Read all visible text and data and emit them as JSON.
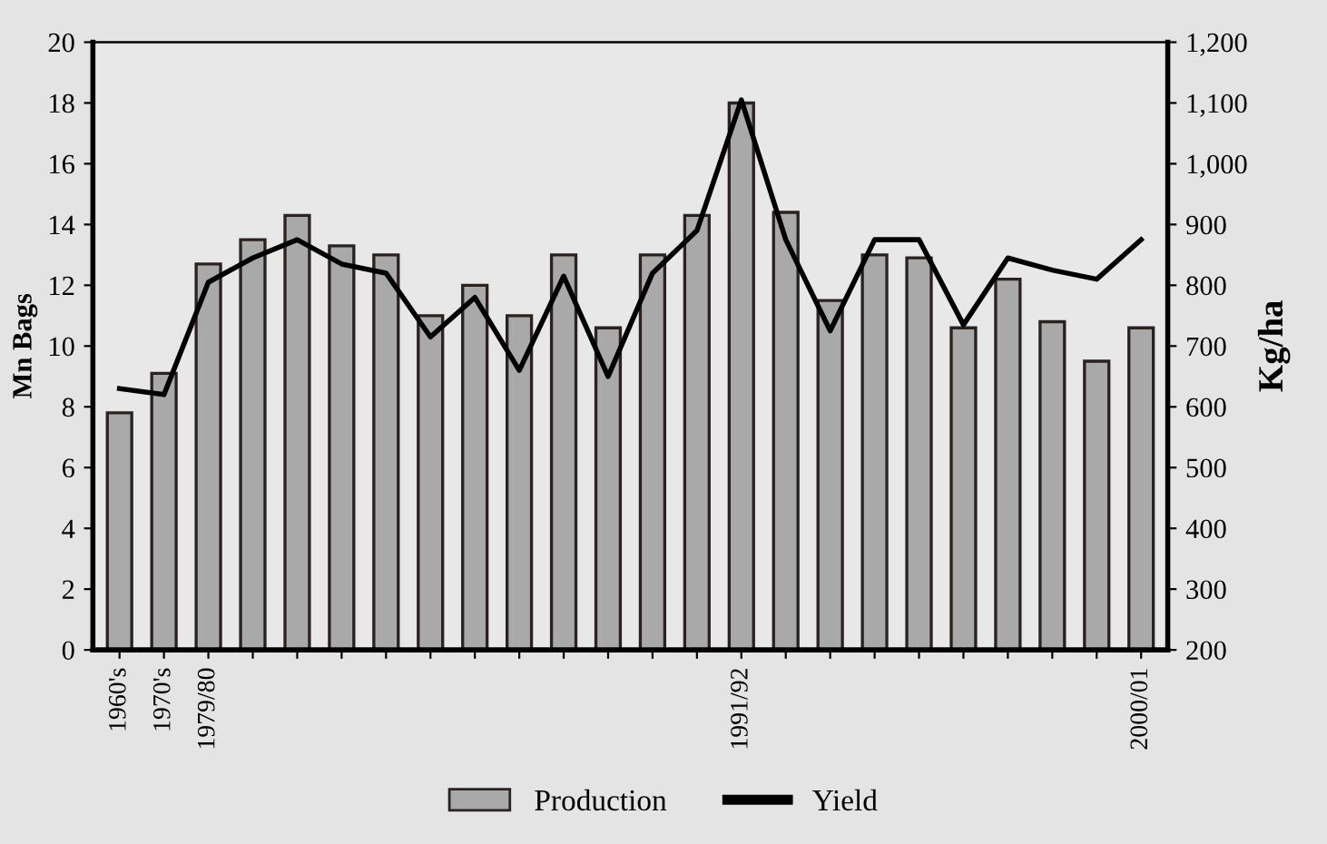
{
  "chart_data": {
    "type": "bar",
    "categories": [
      "1960's",
      "1970's",
      "1979/80",
      null,
      null,
      null,
      null,
      null,
      null,
      null,
      null,
      null,
      null,
      null,
      "1991/92",
      null,
      null,
      null,
      null,
      null,
      null,
      null,
      null,
      "2000/01"
    ],
    "series": [
      {
        "name": "Production",
        "color": "#a9a9a9",
        "values": [
          7.8,
          9.1,
          12.7,
          13.5,
          14.3,
          13.3,
          13.0,
          11.0,
          12.0,
          11.0,
          13.0,
          10.6,
          13.0,
          14.3,
          18.0,
          14.4,
          11.5,
          13.0,
          12.9,
          10.6,
          12.2,
          10.8,
          9.5,
          10.6
        ]
      },
      {
        "name": "Yield",
        "type": "line",
        "axis": "y2",
        "color": "#000000",
        "values": [
          630,
          620,
          805,
          845,
          875,
          835,
          820,
          715,
          780,
          660,
          815,
          650,
          820,
          890,
          1105,
          875,
          725,
          875,
          875,
          735,
          845,
          825,
          810,
          875
        ]
      }
    ],
    "ylabel": "Mn Bags",
    "y2label": "Kg/ha",
    "ylim": [
      0,
      20
    ],
    "yticks": [
      0,
      2,
      4,
      6,
      8,
      10,
      12,
      14,
      16,
      18,
      20
    ],
    "y2lim": [
      200,
      1200
    ],
    "y2ticks": [
      200,
      300,
      400,
      500,
      600,
      700,
      800,
      900,
      {
        "value": 1000,
        "label": "1,000"
      },
      {
        "value": 1100,
        "label": "1,100"
      },
      {
        "value": 1200,
        "label": "1,200"
      }
    ],
    "legend": "bottom",
    "grid": false
  }
}
